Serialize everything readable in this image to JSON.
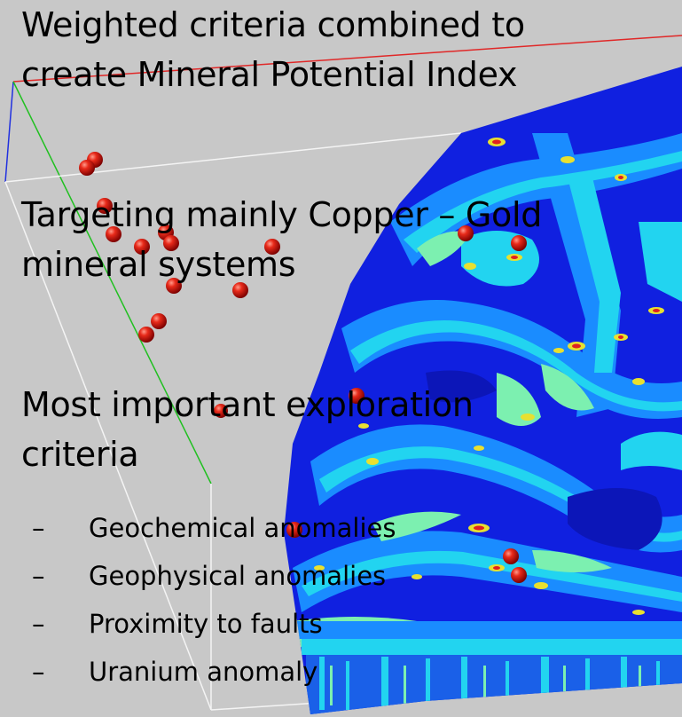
{
  "text": {
    "heading_1_line_1": "Weighted criteria combined to",
    "heading_1_line_2": "create Mineral Potential Index",
    "heading_2_line_1": "Targeting mainly Copper – Gold",
    "heading_2_line_2": "mineral systems",
    "heading_3_line_1": "Most important exploration",
    "heading_3_line_2": "criteria",
    "bullet_marker": "–",
    "bullets": [
      "Geochemical anomalies",
      "Geophysical anomalies",
      "Proximity to faults",
      "Uranium anomaly"
    ]
  },
  "colors": {
    "background": "#c8c8c8",
    "map_low": "#1020e0",
    "map_mid_1": "#1a8cff",
    "map_mid_2": "#22d4f0",
    "map_mid_3": "#7cf0b0",
    "map_high_1": "#e8e030",
    "map_high_2": "#e02020",
    "sphere": "#d01010",
    "box_red_edge": "#e02828",
    "box_green_edge": "#20c020",
    "box_blue_edge": "#2030e0",
    "box_white_edge": "#f4f4f4"
  },
  "icons": {
    "deposit_marker": "red-sphere-icon"
  }
}
